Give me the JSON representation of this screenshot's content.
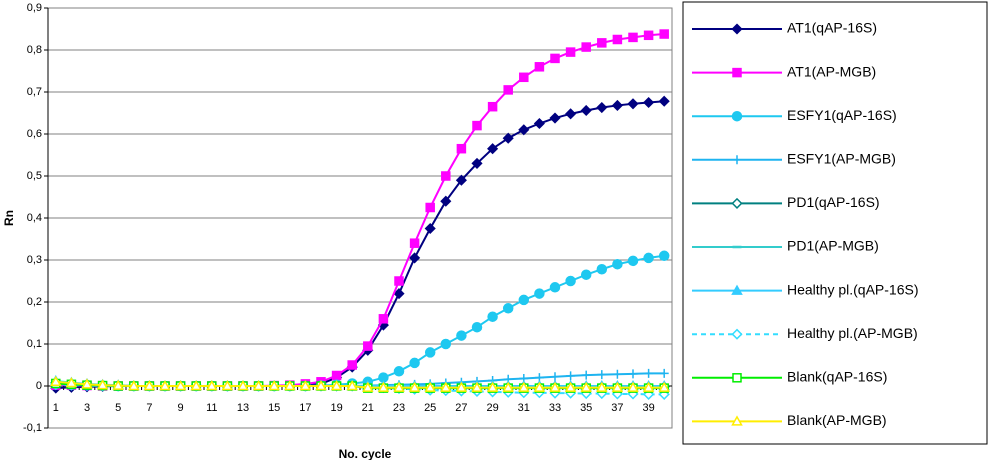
{
  "chart_data": {
    "type": "line",
    "y_label": "Rn",
    "x_label": "No. cycle",
    "categories": [
      1,
      null,
      3,
      null,
      5,
      null,
      7,
      null,
      9,
      null,
      11,
      null,
      13,
      null,
      15,
      null,
      17,
      null,
      19,
      null,
      21,
      null,
      23,
      null,
      25,
      null,
      27,
      null,
      29,
      null,
      31,
      null,
      33,
      null,
      35,
      null,
      37,
      null,
      39,
      null
    ],
    "ylim": [
      -0.1,
      0.9
    ],
    "yticks": [
      {
        "value": -0.1,
        "label": "-0,1"
      },
      0,
      {
        "value": 0.1,
        "label": "0,1"
      },
      {
        "value": 0.2,
        "label": "0,2"
      },
      {
        "value": 0.3,
        "label": "0,3"
      },
      {
        "value": 0.4,
        "label": "0,4"
      },
      {
        "value": 0.5,
        "label": "0,5"
      },
      {
        "value": 0.6,
        "label": "0,6"
      },
      {
        "value": 0.7,
        "label": "0,7"
      },
      {
        "value": 0.8,
        "label": "0,8"
      },
      {
        "value": 0.9,
        "label": "0,9"
      }
    ],
    "grid": true,
    "legend": "right",
    "series": [
      {
        "name": "AT1(qAP-16S)",
        "color": "#000080",
        "marker": "diamond",
        "values": [
          -0.005,
          -0.003,
          -0.002,
          -0.001,
          0,
          0,
          0,
          0,
          0,
          0,
          0,
          0,
          0,
          0,
          0,
          0,
          0.002,
          0.005,
          0.02,
          0.045,
          0.085,
          0.145,
          0.22,
          0.305,
          0.375,
          0.44,
          0.49,
          0.53,
          0.565,
          0.59,
          0.61,
          0.625,
          0.638,
          0.648,
          0.656,
          0.663,
          0.668,
          0.672,
          0.675,
          0.678
        ]
      },
      {
        "name": "AT1(AP-MGB)",
        "color": "#ff00ff",
        "marker": "square",
        "values": [
          0.002,
          0.002,
          0.001,
          0,
          0,
          0,
          0,
          0,
          0,
          0,
          0,
          0,
          0,
          0,
          0.001,
          0.002,
          0.005,
          0.01,
          0.025,
          0.05,
          0.095,
          0.16,
          0.25,
          0.34,
          0.425,
          0.5,
          0.565,
          0.62,
          0.665,
          0.705,
          0.735,
          0.76,
          0.78,
          0.795,
          0.807,
          0.817,
          0.825,
          0.83,
          0.835,
          0.838
        ]
      },
      {
        "name": "ESFY1(qAP-16S)",
        "color": "#1ec8f0",
        "marker": "circle",
        "values": [
          0.005,
          0.003,
          0.002,
          0.001,
          0,
          0,
          0,
          0,
          0,
          0,
          0,
          0,
          0,
          0,
          0,
          0,
          0,
          0.001,
          0.003,
          0.006,
          0.01,
          0.02,
          0.035,
          0.055,
          0.08,
          0.1,
          0.12,
          0.14,
          0.165,
          0.185,
          0.205,
          0.22,
          0.235,
          0.25,
          0.265,
          0.278,
          0.29,
          0.298,
          0.305,
          0.31
        ]
      },
      {
        "name": "ESFY1(AP-MGB)",
        "color": "#1eb4f0",
        "marker": "plus",
        "values": [
          0.005,
          0.003,
          0.002,
          0.001,
          0,
          0,
          0,
          0,
          0,
          0,
          0,
          0,
          0,
          0,
          0,
          0,
          0,
          0,
          0,
          0,
          0.001,
          0.002,
          0.003,
          0.004,
          0.005,
          0.007,
          0.009,
          0.011,
          0.013,
          0.016,
          0.018,
          0.02,
          0.022,
          0.024,
          0.026,
          0.027,
          0.028,
          0.029,
          0.03,
          0.03
        ]
      },
      {
        "name": "PD1(qAP-16S)",
        "color": "#008080",
        "marker": "open-diamond",
        "values": [
          0.008,
          0.006,
          0.004,
          0.002,
          0.001,
          0,
          0,
          0,
          0,
          0,
          0,
          0,
          0,
          0,
          0,
          0,
          0,
          0,
          0,
          0,
          -0.002,
          -0.002,
          -0.002,
          -0.002,
          -0.002,
          -0.002,
          -0.002,
          -0.002,
          -0.002,
          -0.002,
          -0.002,
          -0.002,
          -0.002,
          -0.002,
          -0.002,
          -0.002,
          -0.002,
          -0.002,
          -0.002,
          -0.002
        ]
      },
      {
        "name": "PD1(AP-MGB)",
        "color": "#33cccc",
        "marker": "dash",
        "values": [
          0.005,
          0.004,
          0.003,
          0.002,
          0.001,
          0,
          0,
          0,
          0,
          0,
          0,
          0,
          0,
          0,
          0,
          0,
          0,
          0,
          0,
          0,
          0,
          0,
          0,
          0,
          0,
          0,
          0,
          0,
          0,
          0,
          0,
          0,
          0,
          0,
          0,
          0,
          0,
          0,
          0,
          0
        ]
      },
      {
        "name": "Healthy pl.(qAP-16S)",
        "color": "#33ccff",
        "marker": "triangle",
        "values": [
          0.012,
          0.008,
          0.005,
          0.003,
          0.002,
          0,
          0,
          0,
          0,
          0,
          0,
          0,
          0,
          0,
          0,
          0,
          0,
          0,
          0,
          0,
          0,
          0,
          0,
          0,
          0,
          0,
          0,
          0,
          0,
          0,
          0,
          0,
          0,
          0,
          0,
          0,
          0,
          0,
          0,
          0
        ]
      },
      {
        "name": "Healthy pl.(AP-MGB)",
        "color": "#33ddff",
        "marker": "open-diamond",
        "dashed": true,
        "values": [
          0.003,
          0.002,
          0.001,
          0,
          0,
          0,
          0,
          0,
          0,
          0,
          0,
          0,
          0,
          0,
          0,
          0,
          0,
          0,
          0,
          0,
          -0.002,
          -0.004,
          -0.006,
          -0.008,
          -0.01,
          -0.011,
          -0.012,
          -0.013,
          -0.014,
          -0.015,
          -0.016,
          -0.016,
          -0.017,
          -0.017,
          -0.018,
          -0.018,
          -0.019,
          -0.019,
          -0.02,
          -0.02
        ]
      },
      {
        "name": "Blank(qAP-16S)",
        "color": "#00ee00",
        "marker": "open-square",
        "values": [
          0.006,
          0.004,
          0.002,
          0.001,
          0,
          0,
          0,
          0,
          0,
          0,
          0,
          0,
          0,
          0,
          0,
          0,
          0,
          0,
          0,
          0,
          -0.005,
          -0.005,
          -0.005,
          -0.005,
          -0.005,
          -0.005,
          -0.005,
          -0.005,
          -0.005,
          -0.005,
          -0.005,
          -0.005,
          -0.005,
          -0.005,
          -0.005,
          -0.005,
          -0.005,
          -0.005,
          -0.005,
          -0.005
        ]
      },
      {
        "name": "Blank(AP-MGB)",
        "color": "#ffee00",
        "marker": "open-triangle",
        "values": [
          0.01,
          0.007,
          0.004,
          0.002,
          0.001,
          0,
          0,
          0,
          0,
          0,
          0,
          0,
          0,
          0,
          0,
          0,
          0,
          0,
          0,
          0,
          -0.004,
          -0.004,
          -0.004,
          -0.004,
          -0.004,
          -0.004,
          -0.004,
          -0.004,
          -0.004,
          -0.004,
          -0.004,
          -0.004,
          -0.004,
          -0.004,
          -0.004,
          -0.004,
          -0.004,
          -0.004,
          -0.004,
          -0.004
        ]
      }
    ]
  }
}
